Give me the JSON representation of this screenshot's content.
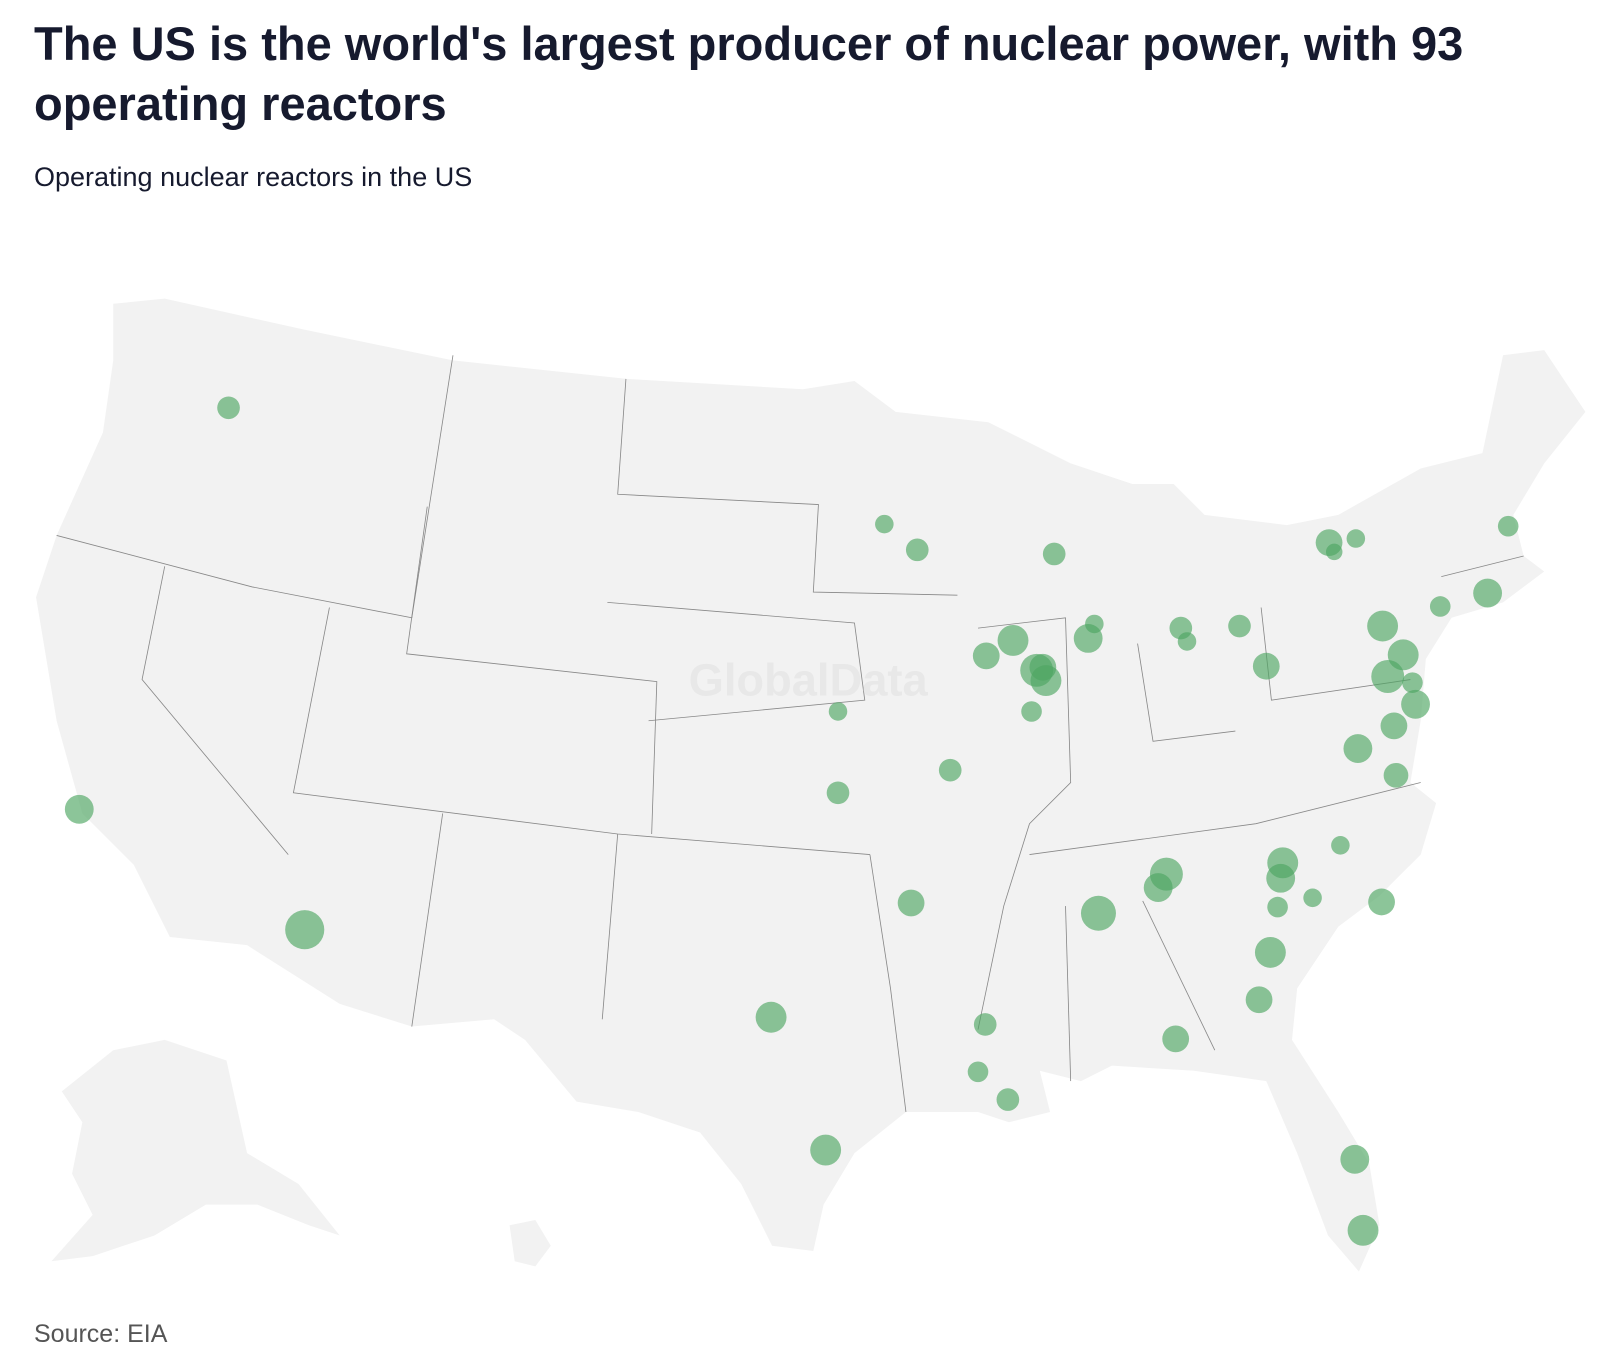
{
  "header": {
    "title": "The US is the world's largest producer of nuclear power, with 93 operating reactors",
    "subtitle": "Operating nuclear reactors in the US"
  },
  "map": {
    "watermark": "GlobalData"
  },
  "footer": {
    "source": "Source: EIA"
  }
}
